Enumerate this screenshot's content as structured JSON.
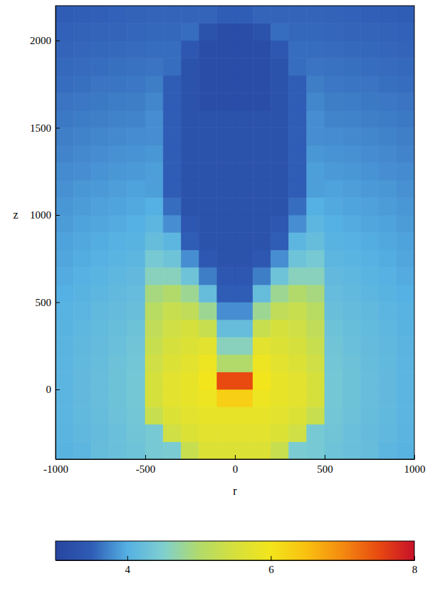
{
  "chart_data": {
    "type": "heatmap",
    "x_label": "r",
    "y_label": "z",
    "xlim": [
      -1000,
      1000
    ],
    "ylim": [
      -400,
      2200
    ],
    "xticks": [
      -1000,
      -500,
      0,
      500,
      1000
    ],
    "yticks": [
      0,
      500,
      1000,
      1500,
      2000
    ],
    "x_bins": [
      -1000,
      -900,
      -800,
      -700,
      -600,
      -500,
      -400,
      -300,
      -200,
      -100,
      0,
      100,
      200,
      300,
      400,
      500,
      600,
      700,
      800,
      900,
      1000
    ],
    "y_bins": [
      -400,
      -300,
      -200,
      -100,
      0,
      100,
      200,
      300,
      400,
      500,
      600,
      700,
      800,
      900,
      1000,
      1100,
      1200,
      1300,
      1400,
      1500,
      1600,
      1700,
      1800,
      1900,
      2000,
      2100,
      2200
    ],
    "values": [
      [
        4.05,
        4.1,
        4.2,
        4.25,
        4.3,
        4.4,
        4.45,
        5.3,
        5.6,
        5.6,
        5.6,
        5.6,
        5.3,
        4.45,
        4.4,
        4.3,
        4.25,
        4.2,
        4.1,
        4.05
      ],
      [
        4.07,
        4.13,
        4.18,
        4.25,
        4.33,
        4.4,
        5.4,
        5.6,
        5.7,
        5.7,
        5.7,
        5.7,
        5.6,
        5.4,
        4.4,
        4.33,
        4.25,
        4.18,
        4.13,
        4.07
      ],
      [
        4.08,
        4.14,
        4.2,
        4.28,
        4.35,
        5.3,
        5.6,
        5.7,
        5.8,
        5.8,
        5.8,
        5.8,
        5.7,
        5.6,
        5.3,
        4.35,
        4.28,
        4.2,
        4.14,
        4.08
      ],
      [
        4.08,
        4.15,
        4.21,
        4.29,
        4.37,
        5.5,
        5.7,
        5.8,
        5.9,
        6.3,
        6.3,
        5.9,
        5.8,
        5.7,
        5.5,
        4.37,
        4.29,
        4.21,
        4.15,
        4.08
      ],
      [
        4.08,
        4.15,
        4.21,
        4.29,
        4.37,
        5.5,
        5.7,
        5.8,
        6.0,
        7.5,
        7.5,
        6.0,
        5.8,
        5.7,
        5.5,
        4.37,
        4.29,
        4.21,
        4.15,
        4.08
      ],
      [
        4.08,
        4.14,
        4.2,
        4.28,
        4.35,
        5.4,
        5.6,
        5.7,
        5.9,
        5.0,
        5.0,
        5.9,
        5.7,
        5.6,
        5.4,
        4.35,
        4.28,
        4.2,
        4.14,
        4.08
      ],
      [
        4.07,
        4.13,
        4.18,
        4.25,
        4.33,
        5.3,
        5.5,
        5.6,
        5.7,
        4.6,
        4.6,
        5.7,
        5.6,
        5.5,
        5.3,
        4.33,
        4.25,
        4.18,
        4.13,
        4.07
      ],
      [
        4.05,
        4.11,
        4.16,
        4.22,
        4.29,
        5.2,
        5.4,
        5.5,
        5.3,
        4.2,
        4.2,
        5.3,
        5.5,
        5.4,
        5.2,
        4.29,
        4.22,
        4.16,
        4.11,
        4.05
      ],
      [
        4.03,
        4.08,
        4.14,
        4.18,
        4.24,
        5.1,
        5.3,
        5.2,
        4.8,
        3.8,
        3.8,
        4.8,
        5.2,
        5.3,
        5.1,
        4.24,
        4.18,
        4.14,
        4.08,
        4.03
      ],
      [
        4.0,
        4.05,
        4.1,
        4.14,
        4.19,
        4.9,
        5.0,
        4.8,
        4.2,
        3.5,
        3.5,
        4.2,
        4.8,
        5.0,
        4.9,
        4.19,
        4.14,
        4.1,
        4.05,
        4.0
      ],
      [
        3.97,
        4.02,
        4.06,
        4.11,
        4.15,
        4.6,
        4.6,
        4.3,
        3.7,
        3.4,
        3.4,
        3.7,
        4.3,
        4.6,
        4.6,
        4.15,
        4.11,
        4.06,
        4.02,
        3.97
      ],
      [
        3.94,
        3.98,
        4.02,
        4.06,
        4.1,
        4.4,
        4.3,
        3.8,
        3.4,
        3.3,
        3.3,
        3.4,
        3.8,
        4.3,
        4.4,
        4.1,
        4.06,
        4.02,
        3.98,
        3.94
      ],
      [
        3.92,
        3.95,
        3.98,
        4.02,
        4.05,
        4.2,
        4.1,
        3.5,
        3.3,
        3.3,
        3.3,
        3.3,
        3.5,
        4.1,
        4.2,
        4.05,
        4.02,
        3.98,
        3.95,
        3.92
      ],
      [
        3.88,
        3.92,
        3.94,
        3.97,
        4.0,
        4.1,
        3.8,
        3.4,
        3.3,
        3.3,
        3.3,
        3.3,
        3.4,
        3.8,
        4.1,
        4.0,
        3.97,
        3.94,
        3.92,
        3.88
      ],
      [
        3.85,
        3.88,
        3.91,
        3.93,
        3.96,
        4.0,
        3.6,
        3.3,
        3.3,
        3.3,
        3.3,
        3.3,
        3.3,
        3.6,
        4.0,
        3.96,
        3.93,
        3.91,
        3.88,
        3.85
      ],
      [
        3.81,
        3.85,
        3.87,
        3.89,
        3.92,
        3.9,
        3.5,
        3.3,
        3.3,
        3.3,
        3.3,
        3.3,
        3.3,
        3.5,
        3.9,
        3.92,
        3.89,
        3.87,
        3.85,
        3.81
      ],
      [
        3.78,
        3.8,
        3.83,
        3.85,
        3.87,
        3.9,
        3.5,
        3.3,
        3.3,
        3.3,
        3.3,
        3.3,
        3.3,
        3.5,
        3.9,
        3.87,
        3.85,
        3.83,
        3.8,
        3.78
      ],
      [
        3.74,
        3.77,
        3.79,
        3.81,
        3.83,
        3.85,
        3.5,
        3.3,
        3.3,
        3.3,
        3.3,
        3.3,
        3.3,
        3.5,
        3.85,
        3.83,
        3.81,
        3.79,
        3.77,
        3.74
      ],
      [
        3.71,
        3.73,
        3.75,
        3.77,
        3.79,
        3.8,
        3.5,
        3.3,
        3.3,
        3.3,
        3.3,
        3.3,
        3.3,
        3.5,
        3.8,
        3.79,
        3.77,
        3.75,
        3.73,
        3.71
      ],
      [
        3.67,
        3.69,
        3.71,
        3.73,
        3.74,
        3.8,
        3.5,
        3.3,
        3.3,
        3.3,
        3.3,
        3.3,
        3.3,
        3.5,
        3.8,
        3.74,
        3.73,
        3.71,
        3.69,
        3.67
      ],
      [
        3.64,
        3.66,
        3.67,
        3.69,
        3.7,
        3.75,
        3.5,
        3.3,
        3.2,
        3.2,
        3.2,
        3.2,
        3.3,
        3.5,
        3.75,
        3.7,
        3.69,
        3.67,
        3.66,
        3.64
      ],
      [
        3.6,
        3.62,
        3.64,
        3.65,
        3.66,
        3.7,
        3.5,
        3.3,
        3.2,
        3.2,
        3.2,
        3.2,
        3.3,
        3.5,
        3.7,
        3.66,
        3.65,
        3.64,
        3.62,
        3.6
      ],
      [
        3.58,
        3.59,
        3.6,
        3.62,
        3.63,
        3.64,
        3.6,
        3.3,
        3.2,
        3.2,
        3.2,
        3.2,
        3.3,
        3.6,
        3.64,
        3.63,
        3.62,
        3.6,
        3.59,
        3.58
      ],
      [
        3.55,
        3.56,
        3.57,
        3.58,
        3.59,
        3.6,
        3.6,
        3.4,
        3.2,
        3.2,
        3.2,
        3.2,
        3.4,
        3.6,
        3.6,
        3.59,
        3.58,
        3.57,
        3.56,
        3.55
      ],
      [
        3.53,
        3.54,
        3.55,
        3.55,
        3.56,
        3.57,
        3.57,
        3.6,
        3.3,
        3.2,
        3.2,
        3.3,
        3.6,
        3.57,
        3.57,
        3.56,
        3.55,
        3.55,
        3.54,
        3.53
      ],
      [
        3.5,
        3.51,
        3.52,
        3.53,
        3.54,
        3.55,
        3.55,
        3.55,
        3.55,
        3.5,
        3.5,
        3.55,
        3.55,
        3.55,
        3.55,
        3.54,
        3.53,
        3.52,
        3.51,
        3.5
      ]
    ],
    "colorbar_range": [
      3,
      8
    ],
    "colorbar_ticks": [
      4,
      6,
      8
    ]
  }
}
